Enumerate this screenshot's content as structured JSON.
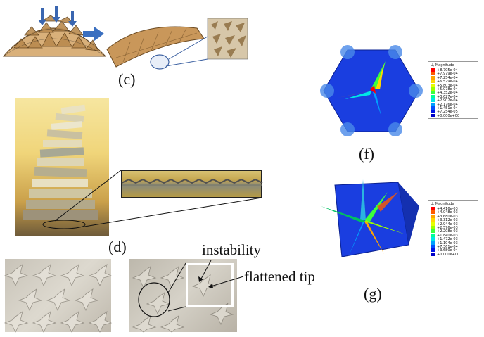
{
  "panels": {
    "c": "(c)",
    "d": "(d)",
    "f": "(f)",
    "g": "(g)"
  },
  "annotations": {
    "instability": "instability",
    "flattened_tip": "flattened tip"
  },
  "legend_f": {
    "title": "U, Magnitude",
    "values": [
      "+8.705e-04",
      "+7.979e-04",
      "+7.254e-04",
      "+6.529e-04",
      "+5.803e-04",
      "+5.078e-04",
      "+4.352e-04",
      "+3.627e-04",
      "+2.902e-04",
      "+2.176e-04",
      "+1.451e-04",
      "+7.254e-05",
      "+0.000e+00"
    ]
  },
  "legend_g": {
    "title": "U, Magnitude",
    "values": [
      "+4.416e-03",
      "+4.048e-03",
      "+3.680e-03",
      "+3.312e-03",
      "+2.944e-03",
      "+2.576e-03",
      "+2.208e-03",
      "+1.840e-03",
      "+1.472e-03",
      "+1.104e-03",
      "+7.361e-04",
      "+3.680e-04",
      "+0.000e+00"
    ]
  },
  "colors": {
    "scale": [
      "#ff0000",
      "#ff5a00",
      "#ffa500",
      "#ffd700",
      "#e6ff00",
      "#9bff00",
      "#3cff3c",
      "#00ff96",
      "#00e6e6",
      "#00a0ff",
      "#0050ff",
      "#0014e6",
      "#0000c8"
    ],
    "fem_blue": "#1a3ee0",
    "card": "#d9b07a",
    "paper": "#cfcac0"
  }
}
